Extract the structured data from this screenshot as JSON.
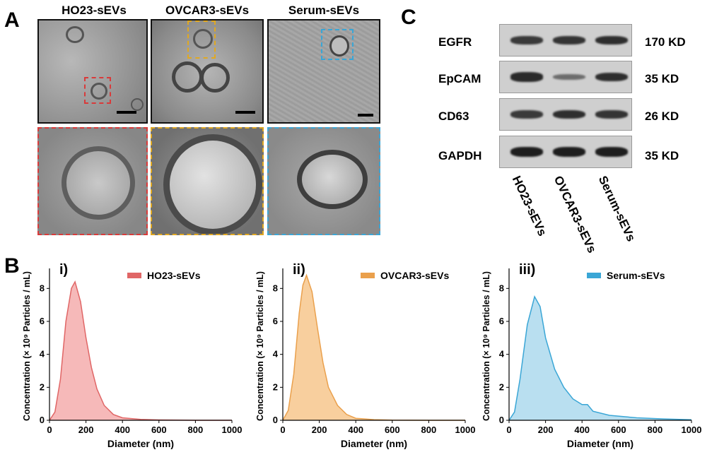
{
  "panels": {
    "a": "A",
    "b": "B",
    "c": "C"
  },
  "tem": {
    "samples": [
      {
        "name": "HO23-sEVs",
        "color": "#d93a3a"
      },
      {
        "name": "OVCAR3-sEVs",
        "color": "#e0a822"
      },
      {
        "name": "Serum-sEVs",
        "color": "#3aa6d6"
      }
    ]
  },
  "western_blot": {
    "proteins": [
      {
        "name": "EGFR",
        "size": "170 KD",
        "intensities": [
          0.75,
          0.8,
          0.85
        ]
      },
      {
        "name": "EpCAM",
        "size": "35 KD",
        "intensities": [
          0.9,
          0.3,
          0.85
        ]
      },
      {
        "name": "CD63",
        "size": "26 KD",
        "intensities": [
          0.75,
          0.85,
          0.8
        ]
      },
      {
        "name": "GAPDH",
        "size": "35 KD",
        "intensities": [
          1.0,
          1.0,
          1.0
        ]
      }
    ],
    "lanes": [
      "HO23-sEVs",
      "OVCAR3-sEVs",
      "Serum-sEVs"
    ]
  },
  "chart_data": [
    {
      "type": "area",
      "panel_label": "i)",
      "legend": "HO23-sEVs",
      "color": "#e06666",
      "fill": "#f6b9b9",
      "xlabel": "Diameter (nm)",
      "ylabel": "Concentration (× 10⁹ Particles / mL)",
      "xlim": [
        0,
        1000
      ],
      "ylim": [
        0,
        9
      ],
      "xticks": [
        0,
        200,
        400,
        600,
        800,
        1000
      ],
      "yticks": [
        0,
        2,
        4,
        6,
        8
      ],
      "x": [
        0,
        30,
        60,
        90,
        120,
        140,
        170,
        200,
        230,
        260,
        300,
        350,
        400,
        500,
        600,
        800,
        1000
      ],
      "y": [
        0,
        0.5,
        2.5,
        6.0,
        8.0,
        8.4,
        7.2,
        5.0,
        3.2,
        1.9,
        0.9,
        0.35,
        0.15,
        0.05,
        0.02,
        0,
        0
      ]
    },
    {
      "type": "area",
      "panel_label": "ii)",
      "legend": "OVCAR3-sEVs",
      "color": "#eaa04c",
      "fill": "#f8cf9e",
      "xlabel": "Diameter (nm)",
      "ylabel": "Concentration (× 10⁹ Particles / mL)",
      "xlim": [
        0,
        1000
      ],
      "ylim": [
        0,
        9
      ],
      "xticks": [
        0,
        200,
        400,
        600,
        800,
        1000
      ],
      "yticks": [
        0,
        2,
        4,
        6,
        8
      ],
      "x": [
        0,
        30,
        60,
        90,
        110,
        130,
        160,
        190,
        220,
        250,
        300,
        350,
        400,
        500,
        600,
        800,
        1000
      ],
      "y": [
        0,
        0.6,
        2.8,
        6.5,
        8.2,
        8.8,
        7.8,
        5.6,
        3.5,
        2.0,
        0.9,
        0.35,
        0.12,
        0.04,
        0.01,
        0,
        0
      ]
    },
    {
      "type": "area",
      "panel_label": "iii)",
      "legend": "Serum-sEVs",
      "color": "#3aa6d6",
      "fill": "#b9dff0",
      "xlabel": "Diameter (nm)",
      "ylabel": "Concentration (× 10⁹ Particles / mL)",
      "xlim": [
        0,
        1000
      ],
      "ylim": [
        0,
        9
      ],
      "xticks": [
        0,
        200,
        400,
        600,
        800,
        1000
      ],
      "yticks": [
        0,
        2,
        4,
        6,
        8
      ],
      "x": [
        0,
        30,
        60,
        100,
        140,
        170,
        200,
        250,
        300,
        350,
        400,
        430,
        460,
        550,
        700,
        850,
        1000
      ],
      "y": [
        0,
        0.5,
        2.5,
        5.8,
        7.5,
        6.9,
        5.0,
        3.1,
        2.0,
        1.3,
        0.95,
        0.95,
        0.55,
        0.3,
        0.15,
        0.08,
        0.03
      ]
    }
  ]
}
